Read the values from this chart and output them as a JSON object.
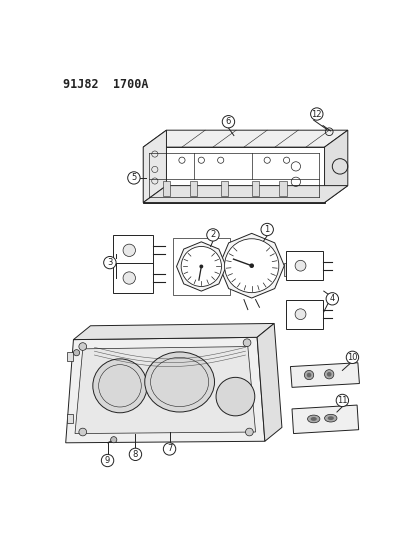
{
  "title": "91J82  1700A",
  "bg_color": "#ffffff",
  "lc": "#222222",
  "fig_width": 4.14,
  "fig_height": 5.33,
  "dpi": 100
}
